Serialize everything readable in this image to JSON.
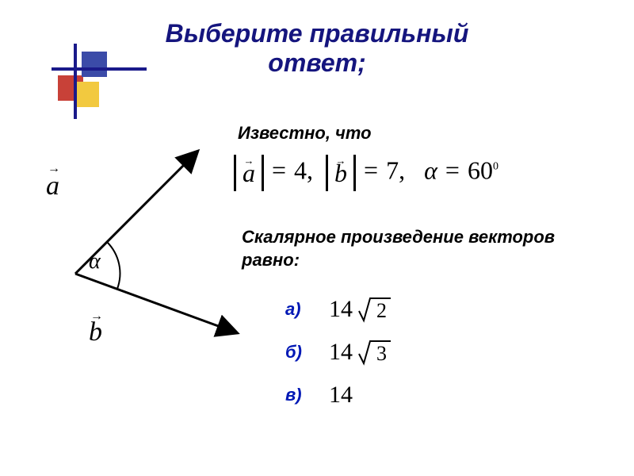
{
  "title": "Выберите  правильный\nответ;",
  "subtitle": "Известно,  что",
  "given": {
    "a_label": "a",
    "a_val": "4",
    "b_label": "b",
    "b_val": "7",
    "alpha_label": "α",
    "alpha_val": "60",
    "alpha_sup": "0"
  },
  "question": "Скалярное  произведение векторов  равно:",
  "answers": [
    {
      "label": "а)",
      "value": "14",
      "sqrt": "2"
    },
    {
      "label": "б)",
      "value": "14",
      "sqrt": "3"
    },
    {
      "label": "в)",
      "value": "14",
      "sqrt": null
    }
  ],
  "diagram": {
    "vec_a": "a",
    "vec_b": "b",
    "angle": "α"
  },
  "colors": {
    "title": "#15157e",
    "answer_label": "#0018b5",
    "deco_red": "#c84138",
    "deco_blue": "#3b4ba8",
    "deco_yellow": "#f2c93f"
  }
}
